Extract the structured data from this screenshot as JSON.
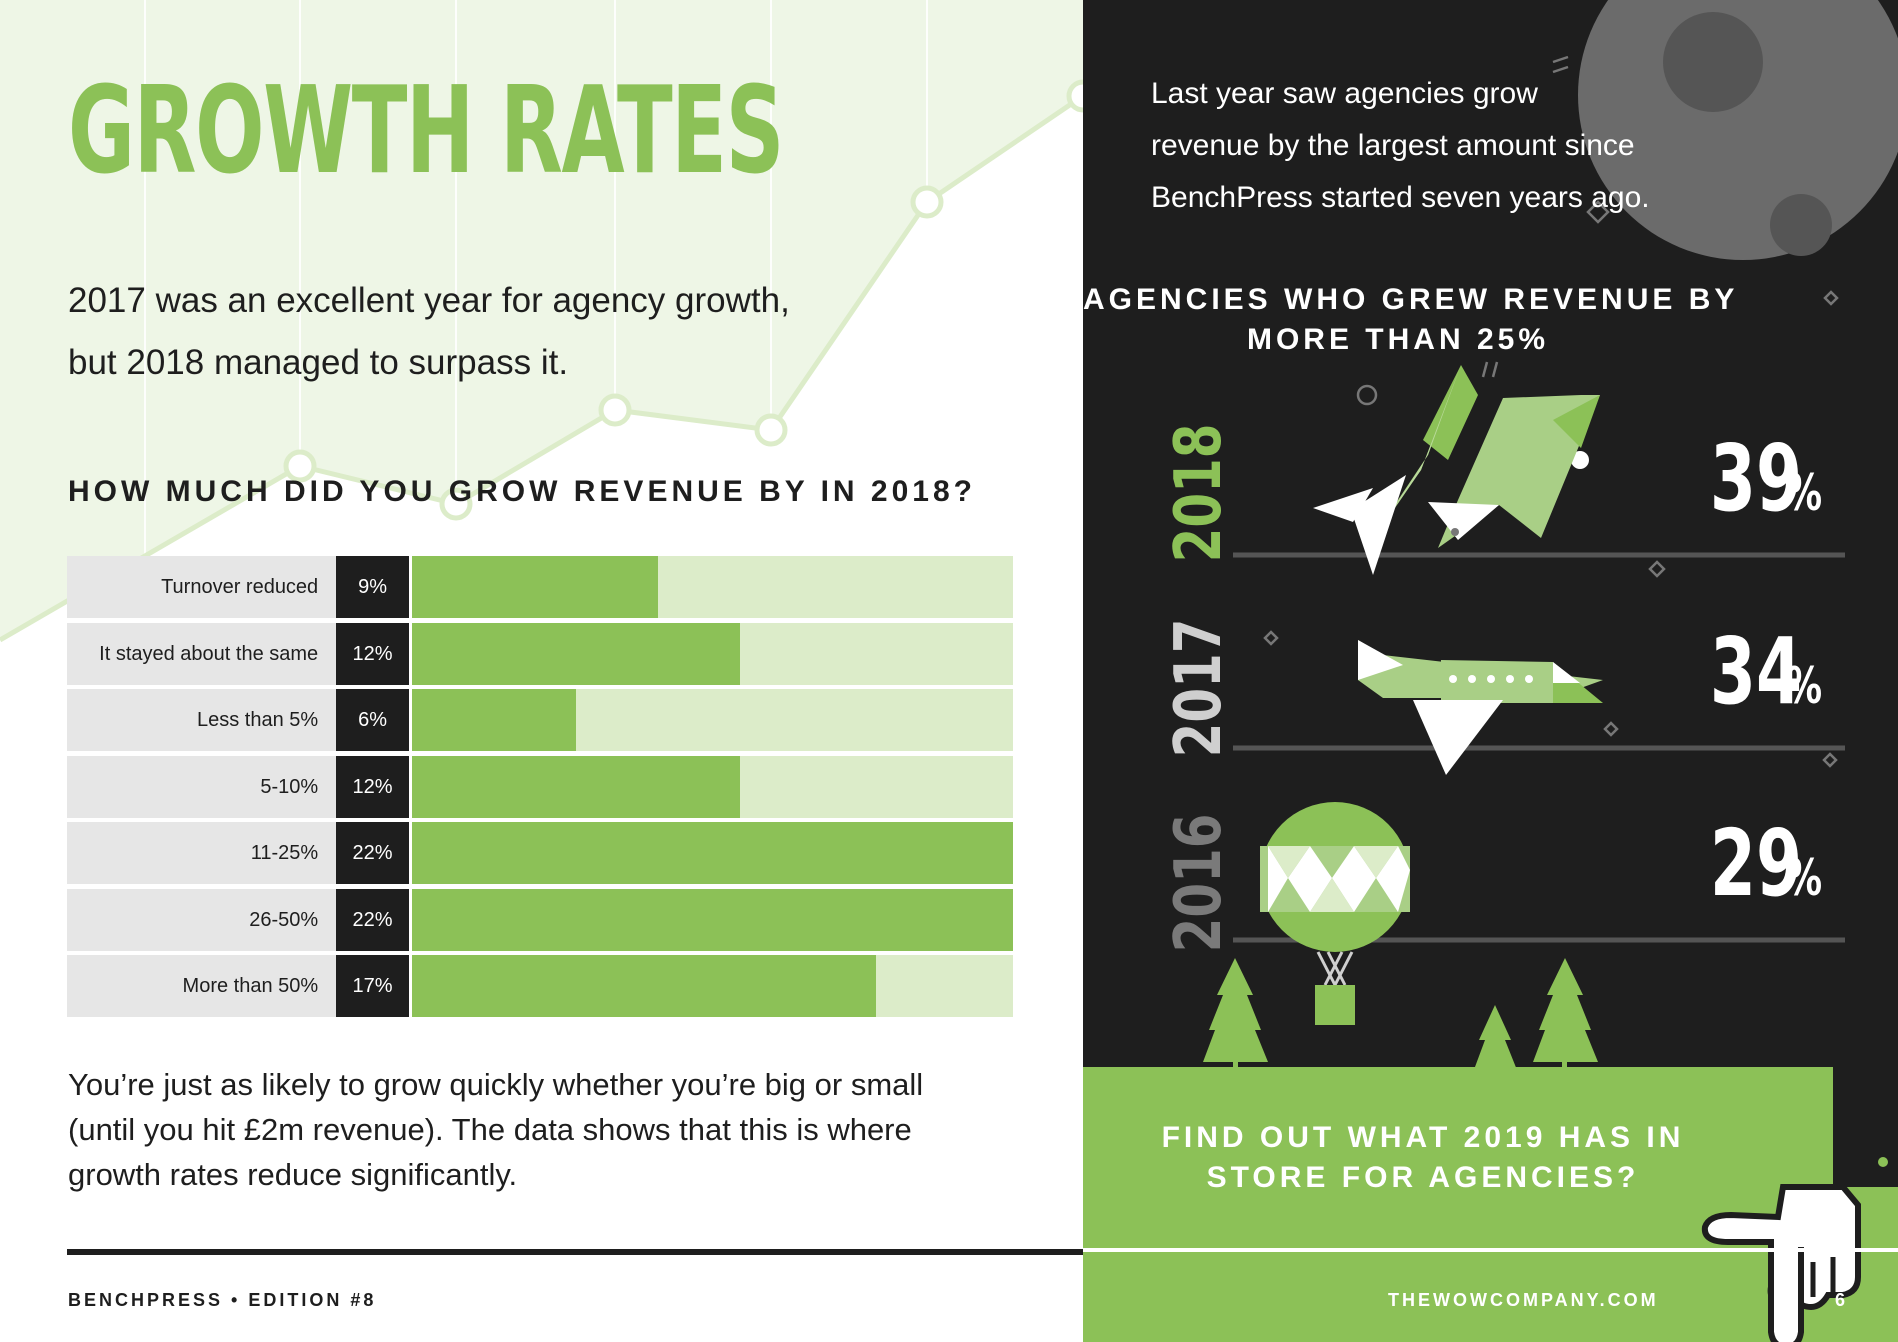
{
  "left_page": {
    "title": "GROWTH RATES",
    "intro_lines": [
      "2017 was an excellent year for agency growth,",
      "but 2018 managed to surpass it."
    ],
    "body_lines": [
      "You’re just as likely to grow quickly whether you’re big or small",
      "(until you hit £2m revenue). The data shows that this is where",
      "growth rates reduce significantly."
    ],
    "footer": "BENCHPRESS • EDITION #8"
  },
  "chart_data": {
    "type": "bar",
    "title": "HOW MUCH DID YOU GROW REVENUE BY IN 2018?",
    "categories": [
      "Turnover reduced",
      "It stayed about the same",
      "Less than 5%",
      "5-10%",
      "11-25%",
      "26-50%",
      "More than 50%"
    ],
    "values": [
      9,
      12,
      6,
      12,
      22,
      22,
      17
    ],
    "value_labels": [
      "9%",
      "12%",
      "6%",
      "12%",
      "22%",
      "22%",
      "17%"
    ],
    "unit": "%",
    "xlim": [
      0,
      22
    ],
    "orientation": "horizontal",
    "colors": {
      "bar": "#8cc157",
      "track": "#dcecc9",
      "label_bg": "#e6e6e6",
      "value_bg": "#1e1e1e"
    }
  },
  "right_page": {
    "intro_lines": [
      "Last year saw agencies grow",
      "revenue by the largest amount since",
      "BenchPress started seven years ago."
    ],
    "heading_lines": [
      "AGENCIES WHO GREW REVENUE BY",
      "MORE THAN 25%"
    ],
    "years": [
      {
        "year": "2018",
        "value": "39",
        "suffix": "%",
        "color": "#8cc157",
        "icon": "rocket-icon"
      },
      {
        "year": "2017",
        "value": "34",
        "suffix": "%",
        "color": "#cfcfcf",
        "icon": "airplane-icon"
      },
      {
        "year": "2016",
        "value": "29",
        "suffix": "%",
        "color": "#7a7a7a",
        "icon": "hot-air-balloon-icon"
      }
    ],
    "cta_lines": [
      "FIND OUT WHAT 2019 HAS IN",
      "STORE FOR AGENCIES?"
    ],
    "footer_url": "THEWOWCOMPANY.COM",
    "page_number": "6"
  },
  "colors": {
    "green": "#8cc157",
    "dark": "#1e1e1e",
    "light_green": "#dcecc9",
    "moon": "#6b6b6b"
  }
}
